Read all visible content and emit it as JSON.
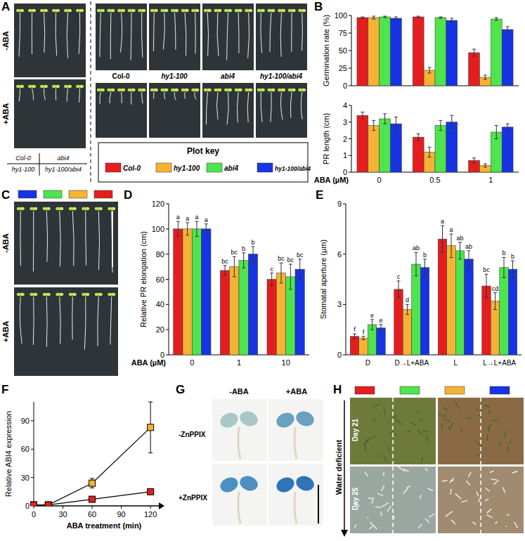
{
  "chart_data": [
    {
      "type": "bar",
      "ylabel": "Germination rate (%)",
      "categories": [
        "0",
        "0.5",
        "1"
      ],
      "ylim": [
        0,
        100
      ],
      "yticks": [
        0,
        25,
        50,
        75,
        100
      ],
      "tick_labels": "y",
      "series": [
        {
          "name": "Col-0",
          "color": "#e41e20",
          "values": [
            97,
            98,
            47
          ],
          "errors": [
            1,
            1,
            5
          ]
        },
        {
          "name": "hy1-100",
          "color": "#f5b335",
          "values": [
            97,
            22,
            12
          ],
          "errors": [
            2,
            4,
            3
          ]
        },
        {
          "name": "abi4",
          "color": "#4ee44e",
          "values": [
            98,
            97,
            95
          ],
          "errors": [
            1,
            1,
            2
          ]
        },
        {
          "name": "hy1-100/abi4",
          "color": "#1634e6",
          "values": [
            96,
            93,
            80
          ],
          "errors": [
            2,
            3,
            4
          ]
        }
      ]
    },
    {
      "type": "bar",
      "ylabel": "PR length (cm)",
      "xlabel": "ABA (µM)",
      "categories": [
        "0",
        "0.5",
        "1"
      ],
      "ylim": [
        0,
        4
      ],
      "yticks": [
        0,
        1,
        2,
        3,
        4
      ],
      "series": [
        {
          "color": "#e41e20",
          "values": [
            3.4,
            2.1,
            0.7
          ],
          "errors": [
            0.2,
            0.2,
            0.15
          ]
        },
        {
          "color": "#f5b335",
          "values": [
            2.8,
            1.2,
            0.4
          ],
          "errors": [
            0.3,
            0.3,
            0.1
          ]
        },
        {
          "color": "#4ee44e",
          "values": [
            3.2,
            2.8,
            2.4
          ],
          "errors": [
            0.3,
            0.3,
            0.4
          ]
        },
        {
          "color": "#1634e6",
          "values": [
            2.9,
            3.0,
            2.7
          ],
          "errors": [
            0.4,
            0.4,
            0.2
          ]
        }
      ]
    },
    {
      "type": "bar",
      "ylabel": "Relative PR elongation (cm)",
      "xlabel": "ABA (µM)",
      "categories": [
        "0",
        "1",
        "10"
      ],
      "ylim": [
        0,
        120
      ],
      "yticks": [
        0,
        20,
        40,
        60,
        80,
        100,
        120
      ],
      "series": [
        {
          "color": "#e41e20",
          "values": [
            100,
            67,
            60
          ],
          "errors": [
            6,
            4,
            5
          ],
          "letters": [
            "a",
            "bc",
            "c"
          ]
        },
        {
          "color": "#f5b335",
          "values": [
            100,
            70,
            65
          ],
          "errors": [
            5,
            8,
            8
          ],
          "letters": [
            "a",
            "bc",
            "bc"
          ]
        },
        {
          "color": "#4ee44e",
          "values": [
            100,
            75,
            62
          ],
          "errors": [
            6,
            6,
            10
          ],
          "letters": [
            "a",
            "b",
            "bc"
          ]
        },
        {
          "color": "#1634e6",
          "values": [
            100,
            80,
            68
          ],
          "errors": [
            4,
            6,
            8
          ],
          "letters": [
            "a",
            "b",
            "bc"
          ]
        }
      ]
    },
    {
      "type": "bar",
      "ylabel": "Stomatal aperture (µm)",
      "categories": [
        "D",
        "D→L+ABA",
        "L",
        "L→L+ABA"
      ],
      "ylim": [
        0,
        9
      ],
      "yticks": [
        0,
        3,
        6,
        9
      ],
      "series": [
        {
          "color": "#e41e20",
          "values": [
            1.1,
            3.9,
            6.9,
            4.1
          ],
          "errors": [
            0.15,
            0.5,
            0.8,
            0.7
          ],
          "letters": [
            "f",
            "c",
            "a",
            "bc"
          ]
        },
        {
          "color": "#f5b335",
          "values": [
            1.0,
            2.7,
            6.5,
            3.2
          ],
          "errors": [
            0.1,
            0.3,
            0.7,
            0.5
          ],
          "letters": [
            "f",
            "d",
            "a",
            "cd"
          ]
        },
        {
          "color": "#4ee44e",
          "values": [
            1.8,
            5.4,
            6.2,
            5.2
          ],
          "errors": [
            0.3,
            0.7,
            0.5,
            0.6
          ],
          "letters": [
            "e",
            "ab",
            "ab",
            "b"
          ]
        },
        {
          "color": "#1634e6",
          "values": [
            1.6,
            5.2,
            5.7,
            5.1
          ],
          "errors": [
            0.2,
            0.5,
            0.5,
            0.5
          ],
          "letters": [
            "e",
            "b",
            "ab",
            "b"
          ]
        }
      ]
    },
    {
      "type": "line",
      "ylabel": "Relative ABI4 expression",
      "xlabel": "ABA treatment (min)",
      "marker": "square",
      "x": [
        0,
        15,
        60,
        120
      ],
      "xlim": [
        0,
        130
      ],
      "xticks": [
        0,
        30,
        60,
        90,
        120
      ],
      "ylim": [
        0,
        110
      ],
      "yticks": [
        0,
        30,
        60,
        90
      ],
      "series": [
        {
          "color": "#f5b335",
          "values": [
            1,
            1,
            24,
            83
          ],
          "errors": [
            0,
            0,
            5,
            27
          ]
        },
        {
          "color": "#e41e20",
          "values": [
            1,
            1,
            7,
            15
          ],
          "errors": [
            0,
            0,
            2,
            2
          ]
        }
      ]
    }
  ],
  "panels": {
    "A": {
      "letter": "A",
      "row_labels": [
        "-ABA",
        "+ABA"
      ],
      "genotypes": [
        "Col-0",
        "hy1-100",
        "abi4",
        "hy1-100/abi4"
      ],
      "small_key": [
        [
          "Col-0",
          "abi4"
        ],
        [
          "hy1-100",
          "hy1-100/abi4"
        ]
      ]
    },
    "B": {
      "letter": "B"
    },
    "C": {
      "letter": "C",
      "row_labels": [
        "-ABA",
        "+ABA"
      ]
    },
    "D": {
      "letter": "D"
    },
    "E": {
      "letter": "E"
    },
    "F": {
      "letter": "F"
    },
    "G": {
      "letter": "G",
      "col_labels": [
        "-ABA",
        "+ABA"
      ],
      "row_labels": [
        "-ZnPPIX",
        "+ZnPPIX"
      ]
    },
    "H": {
      "letter": "H",
      "side_label": "Water deficient",
      "days": [
        "Day 21",
        "Day 25"
      ]
    }
  },
  "plot_key": {
    "title": "Plot key"
  }
}
